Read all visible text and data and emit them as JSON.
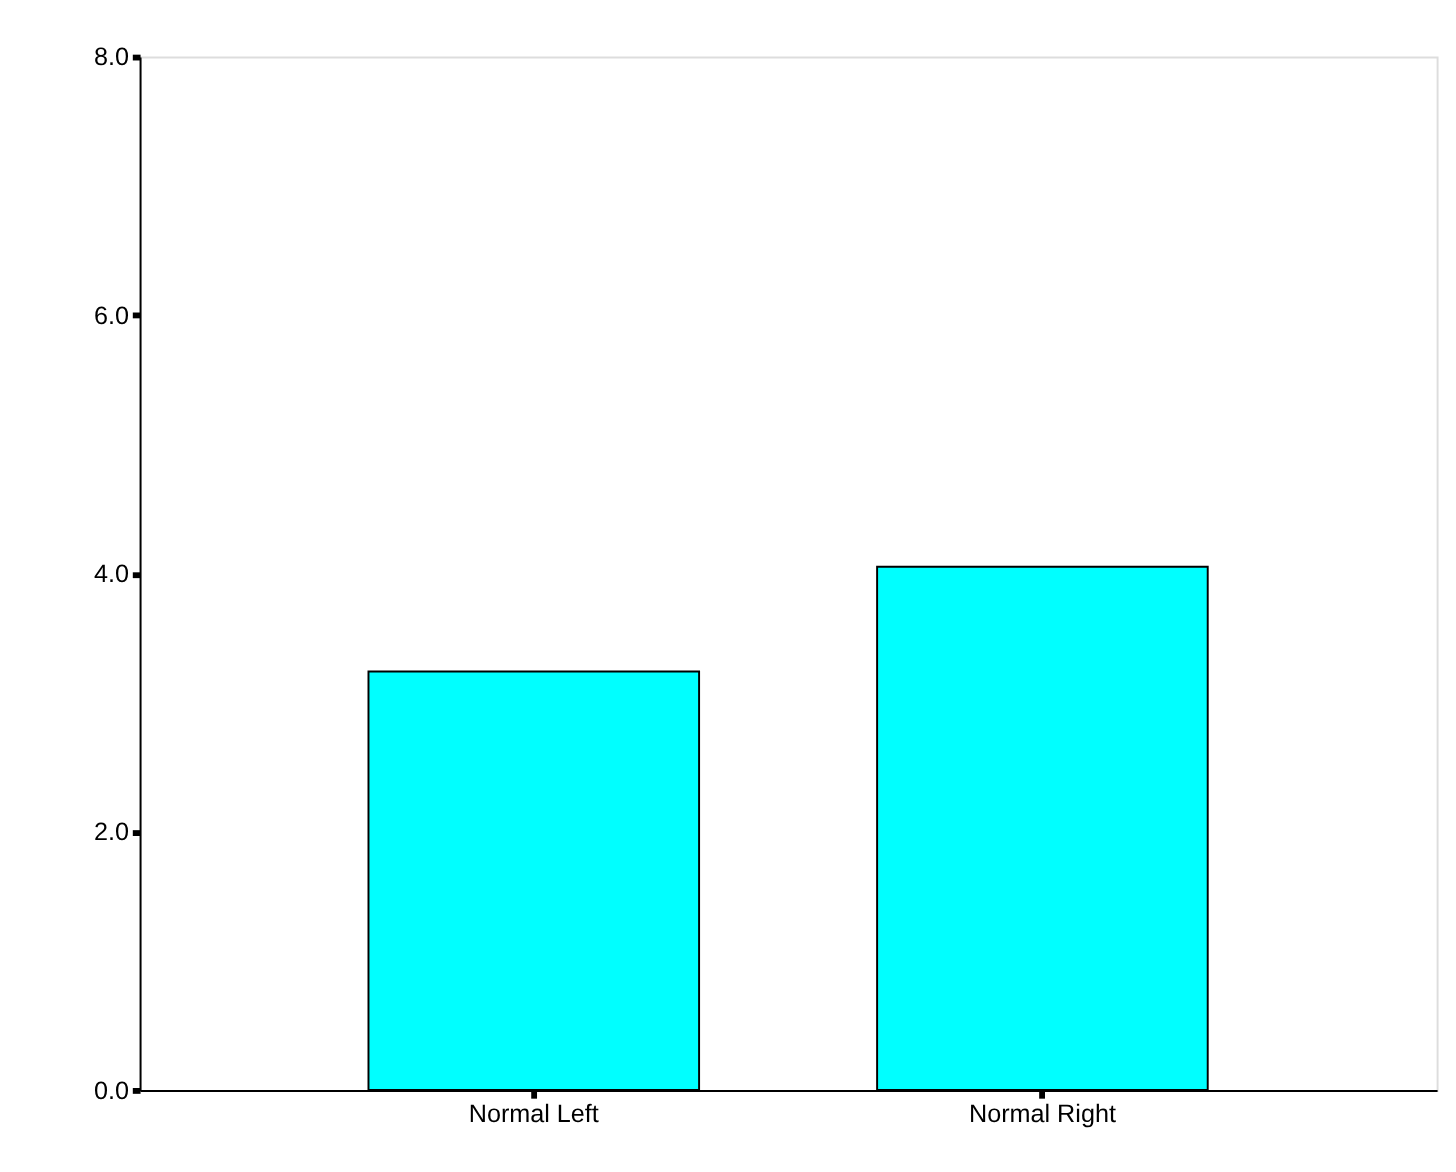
{
  "chart_data": {
    "type": "bar",
    "categories": [
      "Normal Left",
      "Normal Right"
    ],
    "values": [
      3.24,
      4.05
    ],
    "color": "#00ffff",
    "ylim": [
      0,
      8
    ],
    "yticks": [
      {
        "value": 0,
        "label": "0.0"
      },
      {
        "value": 2,
        "label": "2.0"
      },
      {
        "value": 4,
        "label": "4.0"
      },
      {
        "value": 6,
        "label": "6.0"
      },
      {
        "value": 8,
        "label": "8.0"
      }
    ],
    "grid": false
  }
}
